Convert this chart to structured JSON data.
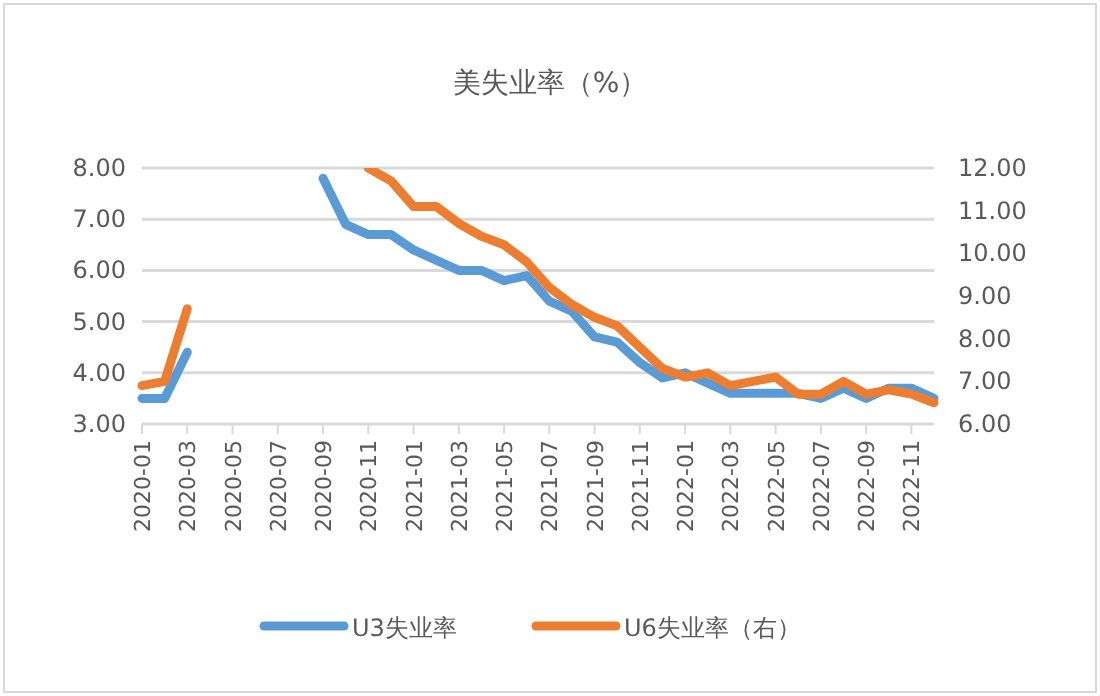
{
  "chart_data": {
    "type": "line",
    "title": "美失业率（%）",
    "categories": [
      "2020-01",
      null,
      "2020-03",
      null,
      "2020-05",
      null,
      "2020-07",
      null,
      "2020-09",
      null,
      "2020-11",
      null,
      "2021-01",
      null,
      "2021-03",
      null,
      "2021-05",
      null,
      "2021-07",
      null,
      "2021-09",
      null,
      "2021-11",
      null,
      "2022-01",
      null,
      "2022-03",
      null,
      "2022-05",
      null,
      "2022-07",
      null,
      "2022-09",
      null,
      "2022-11",
      null
    ],
    "series": [
      {
        "name": "U3失业率",
        "color": "#5b9bd5",
        "values": [
          3.5,
          3.5,
          4.4,
          null,
          null,
          null,
          null,
          null,
          7.8,
          6.9,
          6.7,
          6.7,
          6.4,
          6.2,
          6.0,
          6.0,
          5.8,
          5.9,
          5.4,
          5.2,
          4.7,
          4.6,
          4.2,
          3.9,
          4.0,
          3.8,
          3.6,
          3.6,
          3.6,
          3.6,
          3.5,
          3.7,
          3.5,
          3.7,
          3.7,
          3.5
        ]
      },
      {
        "name": "U6失业率（右）",
        "color": "#ed7d31",
        "axis": "y2",
        "values": [
          6.9,
          7.0,
          8.7,
          null,
          null,
          null,
          null,
          null,
          null,
          null,
          12.0,
          11.7,
          11.1,
          11.1,
          10.7,
          10.4,
          10.2,
          9.8,
          9.2,
          8.8,
          8.5,
          8.3,
          7.8,
          7.3,
          7.1,
          7.2,
          6.9,
          7.0,
          7.1,
          6.7,
          6.7,
          7.0,
          6.7,
          6.8,
          6.7,
          6.5
        ]
      }
    ],
    "ylim": [
      3,
      8
    ],
    "yticks": [
      {
        "value": 3,
        "label": "3.00"
      },
      {
        "value": 4,
        "label": "4.00"
      },
      {
        "value": 5,
        "label": "5.00"
      },
      {
        "value": 6,
        "label": "6.00"
      },
      {
        "value": 7,
        "label": "7.00"
      },
      {
        "value": 8,
        "label": "8.00"
      }
    ],
    "y2lim": [
      6,
      12
    ],
    "y2ticks": [
      {
        "value": 6,
        "label": "6.00"
      },
      {
        "value": 7,
        "label": "7.00"
      },
      {
        "value": 8,
        "label": "8.00"
      },
      {
        "value": 9,
        "label": "9.00"
      },
      {
        "value": 10,
        "label": "10.00"
      },
      {
        "value": 11,
        "label": "11.00"
      },
      {
        "value": 12,
        "label": "12.00"
      }
    ],
    "grid": "y",
    "legend": "bottom"
  }
}
